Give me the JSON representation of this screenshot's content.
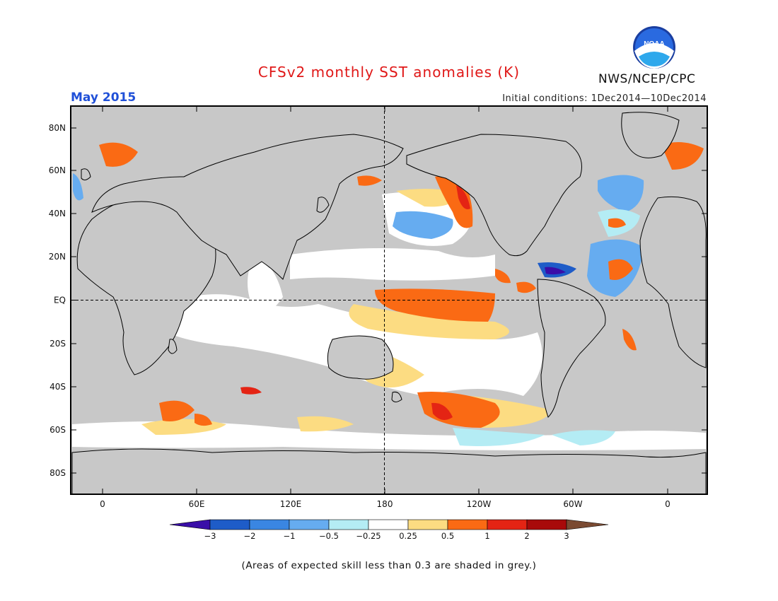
{
  "title": "CFSv2 monthly SST anomalies (K)",
  "month": "May 2015",
  "initial_conditions": "Initial conditions: 1Dec2014—10Dec2014",
  "agency": "NWS/NCEP/CPC",
  "logo_text": "NOAA",
  "footnote": "(Areas of expected skill less than 0.3 are shaded in grey.)",
  "lat_labels": [
    "80N",
    "60N",
    "40N",
    "20N",
    "EQ",
    "20S",
    "40S",
    "60S",
    "80S"
  ],
  "lon_labels": [
    "0",
    "60E",
    "120E",
    "180",
    "120W",
    "60W",
    "0"
  ],
  "colorbar": {
    "ticks": [
      "−3",
      "−2",
      "−1",
      "−0.5",
      "−0.25",
      "0.25",
      "0.5",
      "1",
      "2",
      "3"
    ],
    "colors": [
      "#3a0ea8",
      "#1e5cc8",
      "#3a86e2",
      "#66acf0",
      "#b4ecf4",
      "#ffffff",
      "#fcdc82",
      "#fa6a14",
      "#e42414",
      "#a80a0a",
      "#7a4a32"
    ]
  },
  "colors": {
    "skill_grey": "#c8c8c8",
    "title_red": "#e01818",
    "month_blue": "#2050d8"
  }
}
